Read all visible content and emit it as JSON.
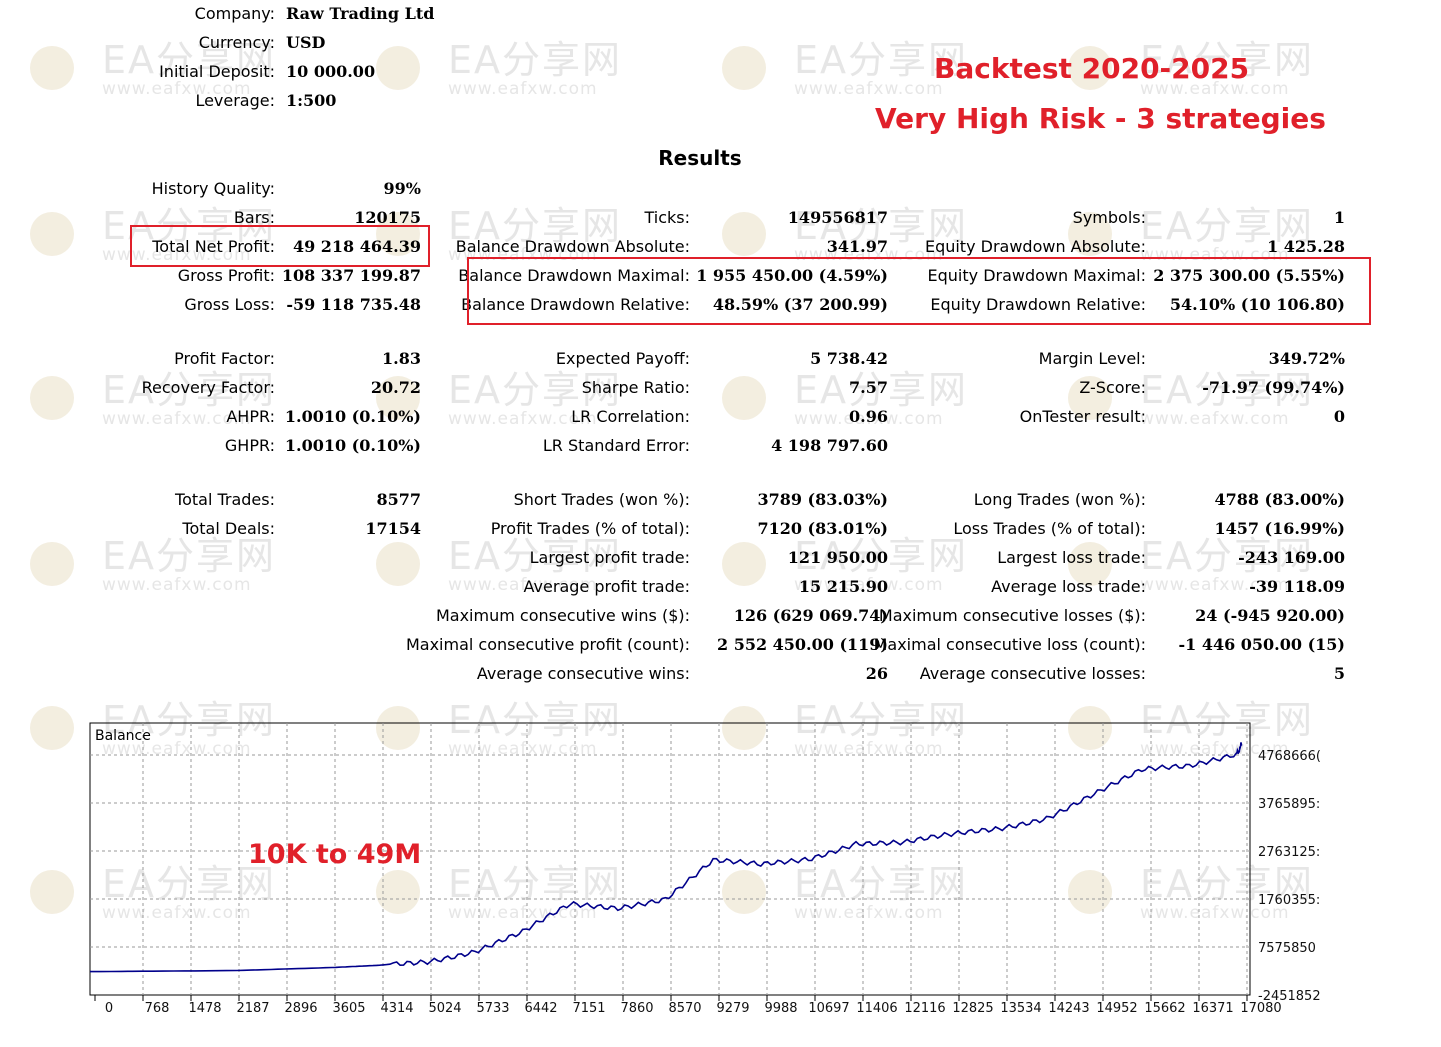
{
  "header": {
    "company_label": "Company:",
    "company": "Raw Trading Ltd",
    "currency_label": "Currency:",
    "currency": "USD",
    "deposit_label": "Initial Deposit:",
    "deposit": "10 000.00",
    "leverage_label": "Leverage:",
    "leverage": "1:500"
  },
  "headline": {
    "line1": "Backtest 2020-2025",
    "line2": "Very High Risk - 3 strategies"
  },
  "results_title": "Results",
  "watermark": {
    "big": "EA分享网",
    "small": "www.eafxw.com"
  },
  "stats": [
    {
      "label": "History Quality:",
      "value": "99%"
    },
    {
      "label": "Bars:",
      "value": "120175"
    },
    {
      "label": "Ticks:",
      "value": "149556817"
    },
    {
      "label": "Symbols:",
      "value": "1"
    },
    {
      "label": "Total Net Profit:",
      "value": "49 218 464.39"
    },
    {
      "label": "Balance Drawdown Absolute:",
      "value": "341.97"
    },
    {
      "label": "Equity Drawdown Absolute:",
      "value": "1 425.28"
    },
    {
      "label": "Gross Profit:",
      "value": "108 337 199.87"
    },
    {
      "label": "Balance Drawdown Maximal:",
      "value": "1 955 450.00 (4.59%)"
    },
    {
      "label": "Equity Drawdown Maximal:",
      "value": "2 375 300.00 (5.55%)"
    },
    {
      "label": "Gross Loss:",
      "value": "-59 118 735.48"
    },
    {
      "label": "Balance Drawdown Relative:",
      "value": "48.59% (37 200.99)"
    },
    {
      "label": "Equity Drawdown Relative:",
      "value": "54.10% (10 106.80)"
    },
    {
      "label": "Profit Factor:",
      "value": "1.83"
    },
    {
      "label": "Expected Payoff:",
      "value": "5 738.42"
    },
    {
      "label": "Margin Level:",
      "value": "349.72%"
    },
    {
      "label": "Recovery Factor:",
      "value": "20.72"
    },
    {
      "label": "Sharpe Ratio:",
      "value": "7.57"
    },
    {
      "label": "Z-Score:",
      "value": "-71.97 (99.74%)"
    },
    {
      "label": "AHPR:",
      "value": "1.0010 (0.10%)"
    },
    {
      "label": "LR Correlation:",
      "value": "0.96"
    },
    {
      "label": "OnTester result:",
      "value": "0"
    },
    {
      "label": "GHPR:",
      "value": "1.0010 (0.10%)"
    },
    {
      "label": "LR Standard Error:",
      "value": "4 198 797.60"
    },
    {
      "label": "Total Trades:",
      "value": "8577"
    },
    {
      "label": "Short Trades (won %):",
      "value": "3789 (83.03%)"
    },
    {
      "label": "Long Trades (won %):",
      "value": "4788 (83.00%)"
    },
    {
      "label": "Total Deals:",
      "value": "17154"
    },
    {
      "label": "Profit Trades (% of total):",
      "value": "7120 (83.01%)"
    },
    {
      "label": "Loss Trades (% of total):",
      "value": "1457 (16.99%)"
    },
    {
      "label": "Largest profit trade:",
      "value": "121 950.00"
    },
    {
      "label": "Largest loss trade:",
      "value": "-243 169.00"
    },
    {
      "label": "Average profit trade:",
      "value": "15 215.90"
    },
    {
      "label": "Average loss trade:",
      "value": "-39 118.09"
    },
    {
      "label": "Maximum consecutive wins ($):",
      "value": "126 (629 069.74)"
    },
    {
      "label": "Maximum consecutive losses ($):",
      "value": "24 (-945 920.00)"
    },
    {
      "label": "Maximal consecutive profit (count):",
      "value": "2 552 450.00 (119)"
    },
    {
      "label": "Maximal consecutive loss (count):",
      "value": "-1 446 050.00 (15)"
    },
    {
      "label": "Average consecutive wins:",
      "value": "26"
    },
    {
      "label": "Average consecutive losses:",
      "value": "5"
    }
  ],
  "chart_data": {
    "type": "line",
    "series": [
      {
        "name": "Balance",
        "color": "#00008b",
        "x": [
          0,
          2187,
          3605,
          4314,
          5024,
          5733,
          6442,
          7151,
          7860,
          8570,
          9279,
          9988,
          10697,
          11406,
          12116,
          12825,
          13534,
          14243,
          14952,
          15662,
          16371,
          17080,
          17154
        ],
        "y": [
          10000,
          250000,
          900000,
          1400000,
          2400000,
          4500000,
          8400000,
          14500000,
          14000000,
          16000000,
          24000000,
          23000000,
          24500000,
          28000000,
          28000000,
          29500000,
          31000000,
          33500000,
          38500000,
          43500000,
          44500000,
          47500000,
          49228464
        ]
      }
    ],
    "annotation": "10K to 49M",
    "y_ticks": [
      "4768666(",
      "3765895:",
      "2763125:",
      "1760355:",
      "7575850",
      "-2451852"
    ],
    "x_ticks": [
      "0",
      "768",
      "1478",
      "2187",
      "2896",
      "3605",
      "4314",
      "5024",
      "5733",
      "6442",
      "7151",
      "7860",
      "8570",
      "9279",
      "9988",
      "10697",
      "11406",
      "12116",
      "12825",
      "13534",
      "14243",
      "14952",
      "15662",
      "16371",
      "17080"
    ],
    "xlim": [
      0,
      17154
    ],
    "ylim": [
      -2451852,
      50000000
    ],
    "grid": true
  }
}
